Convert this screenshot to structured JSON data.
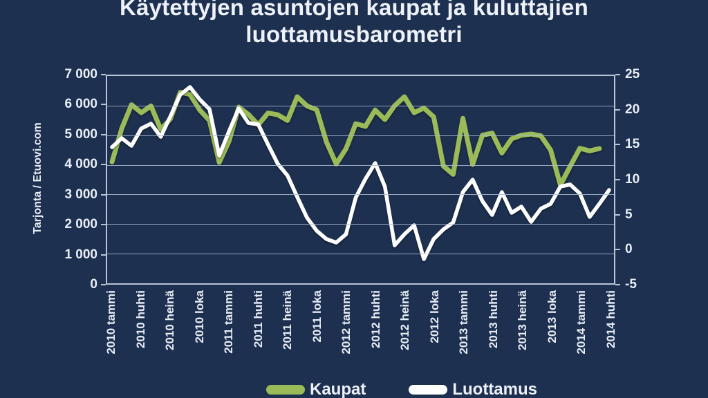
{
  "title": {
    "line1": "Käytettyjen asuntojen kaupat ja kuluttajien",
    "line2": "luottamusbarometri"
  },
  "colors": {
    "background": "#1d3050",
    "grid": "#b7c5d9",
    "text": "#eef3fa",
    "kaupat_line": "#9bbb59",
    "luottamus_line": "#ffffff"
  },
  "chart_data": {
    "type": "line",
    "title": "Käytettyjen asuntojen kaupat ja kuluttajien luottamusbarometri",
    "grid": "horizontal",
    "left_axis": {
      "label": "Tarjonta / Etuovi.com",
      "min": 0,
      "max": 7000,
      "step": 1000,
      "tick_labels": [
        "0",
        "1 000",
        "2 000",
        "3 000",
        "4 000",
        "5 000",
        "6 000",
        "7 000"
      ]
    },
    "right_axis": {
      "min": -5,
      "max": 25,
      "step": 5,
      "tick_labels": [
        "-5",
        "0",
        "5",
        "10",
        "15",
        "20",
        "25"
      ]
    },
    "x_tick_labels": [
      "2010 tammi",
      "2010 huhti",
      "2010 heinä",
      "2010 loka",
      "2011 tammi",
      "2011 huhti",
      "2011 heinä",
      "2011 loka",
      "2012 tammi",
      "2012 huhti",
      "2012 heinä",
      "2012 loka",
      "2013 tammi",
      "2013 huhti",
      "2013 heinä",
      "2013 loka",
      "2014 tammi",
      "2014 huhti"
    ],
    "months": [
      "2010-01",
      "2010-02",
      "2010-03",
      "2010-04",
      "2010-05",
      "2010-06",
      "2010-07",
      "2010-08",
      "2010-09",
      "2010-10",
      "2010-11",
      "2010-12",
      "2011-01",
      "2011-02",
      "2011-03",
      "2011-04",
      "2011-05",
      "2011-06",
      "2011-07",
      "2011-08",
      "2011-09",
      "2011-10",
      "2011-11",
      "2011-12",
      "2012-01",
      "2012-02",
      "2012-03",
      "2012-04",
      "2012-05",
      "2012-06",
      "2012-07",
      "2012-08",
      "2012-09",
      "2012-10",
      "2012-11",
      "2012-12",
      "2013-01",
      "2013-02",
      "2013-03",
      "2013-04",
      "2013-05",
      "2013-06",
      "2013-07",
      "2013-08",
      "2013-09",
      "2013-10",
      "2013-11",
      "2013-12",
      "2014-01",
      "2014-02",
      "2014-03",
      "2014-04"
    ],
    "series": [
      {
        "name": "Kaupat",
        "axis": "left",
        "color": "#9bbb59",
        "values": [
          4100,
          5230,
          6030,
          5760,
          5990,
          5200,
          5550,
          6450,
          6380,
          5850,
          5500,
          4080,
          4800,
          5950,
          5700,
          5350,
          5750,
          5690,
          5500,
          6300,
          5990,
          5860,
          4770,
          4030,
          4540,
          5390,
          5300,
          5850,
          5530,
          6000,
          6300,
          5760,
          5920,
          5620,
          3960,
          3680,
          5570,
          4010,
          5000,
          5070,
          4400,
          4880,
          5000,
          5040,
          4980,
          4500,
          3320,
          3950,
          4560,
          4470,
          4550,
          null
        ]
      },
      {
        "name": "Luottamus",
        "axis": "right",
        "color": "#ffffff",
        "values": [
          14.7,
          16.0,
          14.9,
          17.4,
          18.1,
          16.2,
          19.2,
          22.3,
          23.4,
          21.6,
          20.2,
          13.5,
          17.0,
          20.3,
          18.2,
          18.0,
          15.1,
          12.3,
          10.6,
          7.5,
          4.5,
          2.6,
          1.4,
          0.9,
          2.1,
          7.4,
          10.1,
          12.4,
          9.0,
          0.5,
          2.1,
          3.4,
          -1.5,
          1.4,
          2.8,
          3.8,
          8.2,
          10.0,
          6.9,
          4.9,
          8.2,
          5.2,
          6.1,
          3.9,
          5.8,
          6.5,
          9.0,
          9.3,
          8.0,
          4.6,
          6.5,
          8.5
        ]
      }
    ],
    "legend": {
      "position": "bottom",
      "items": [
        "Kaupat",
        "Luottamus"
      ]
    }
  }
}
